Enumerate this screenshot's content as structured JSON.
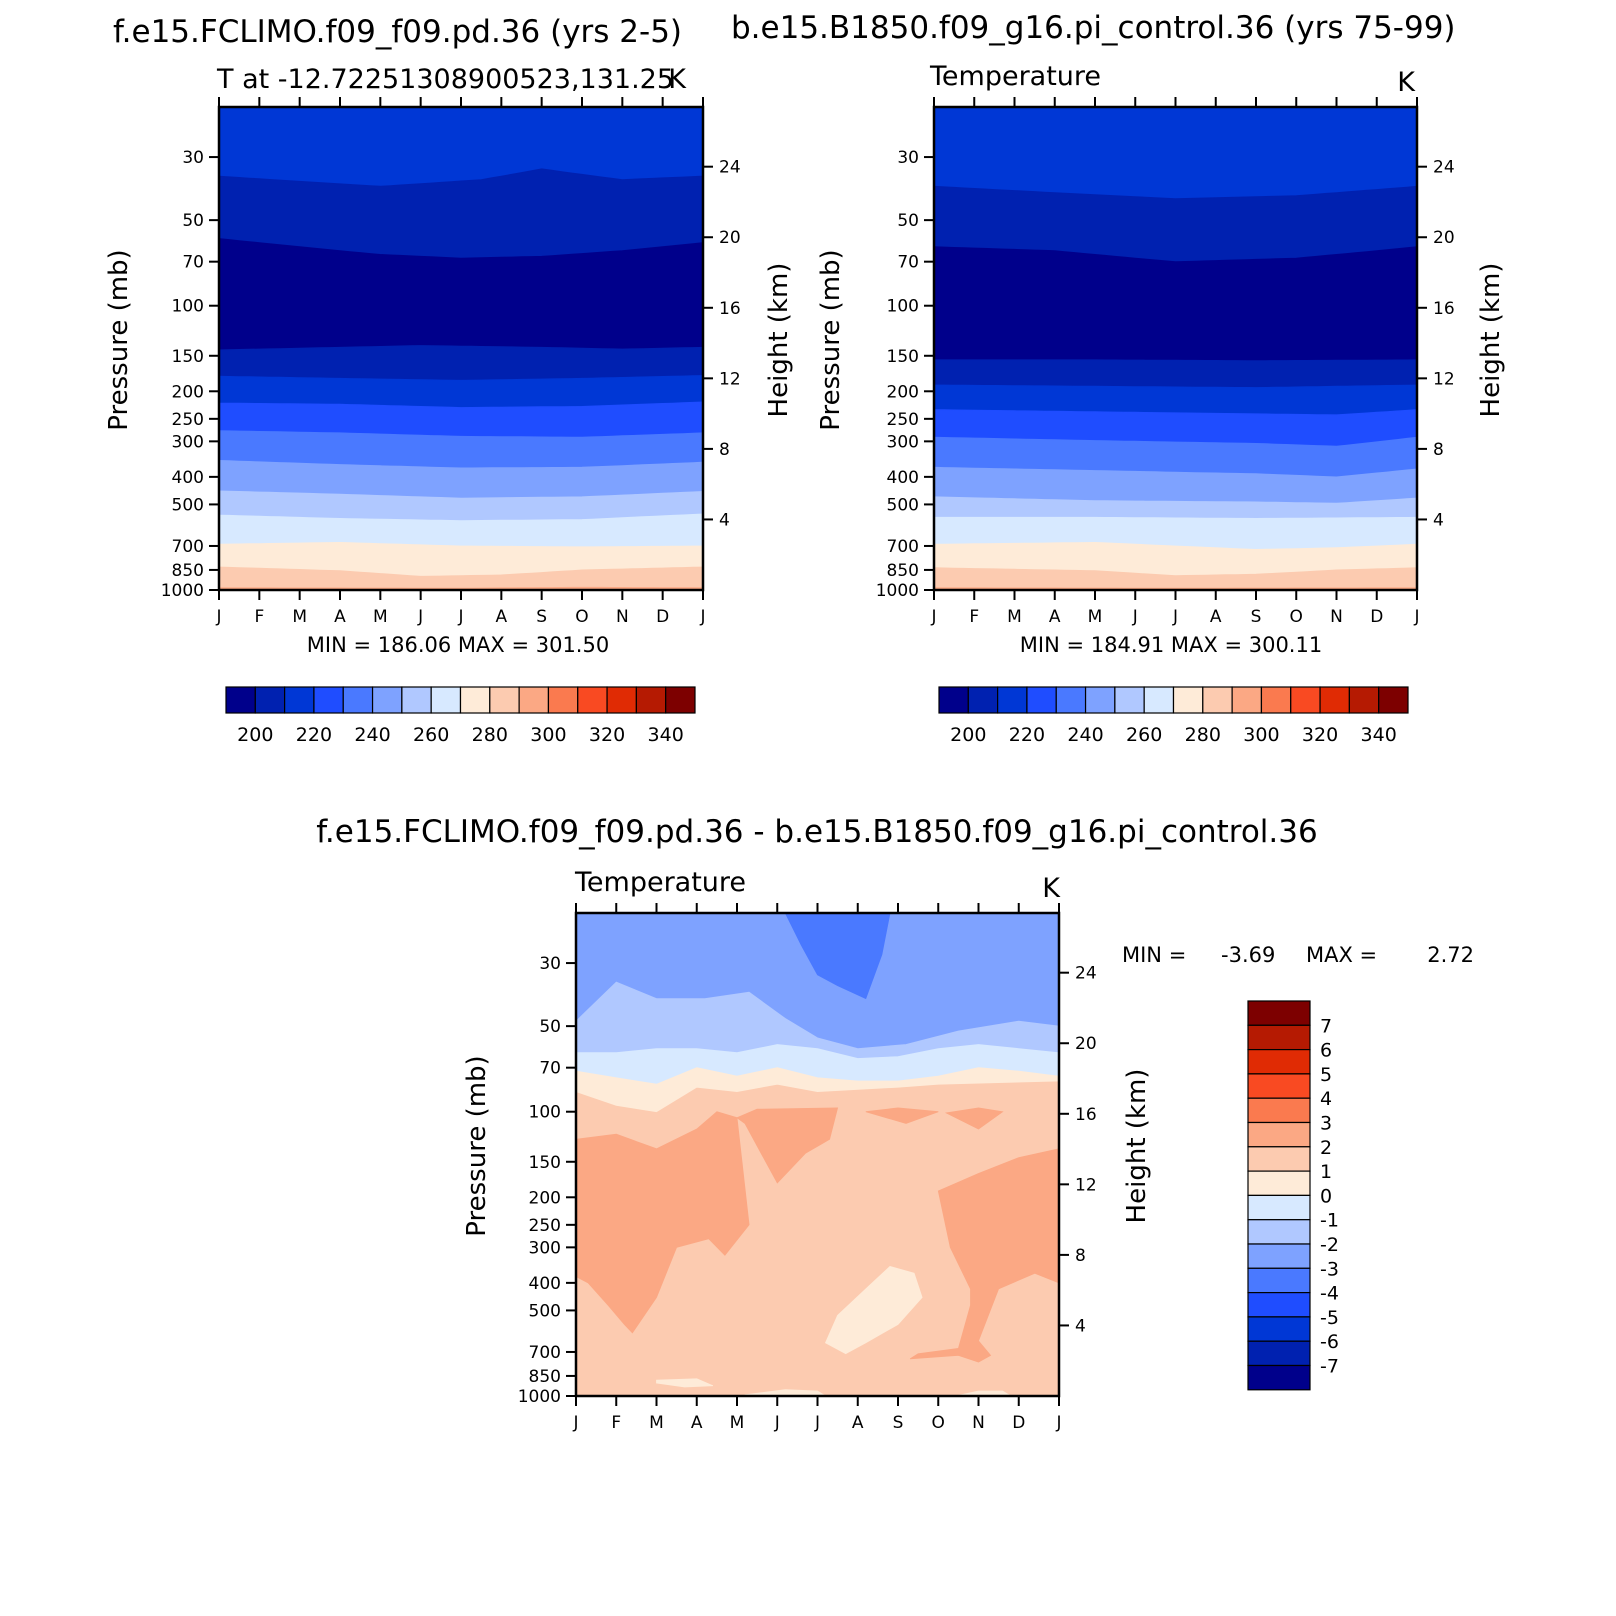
{
  "palette": {
    "abs": [
      "#00008b",
      "#0021b0",
      "#0037d5",
      "#1f4dff",
      "#4a79ff",
      "#7ea2ff",
      "#b0c8ff",
      "#d7e9ff",
      "#feebd8",
      "#fccbb0",
      "#fba884",
      "#fa7a4f",
      "#f94a22",
      "#e02b04",
      "#b51a02",
      "#7d0000"
    ],
    "diff": [
      "#00008b",
      "#0021b0",
      "#0037d5",
      "#1f4dff",
      "#4a79ff",
      "#7ea2ff",
      "#b0c8ff",
      "#d7e9ff",
      "#feebd8",
      "#fccbb0",
      "#fba884",
      "#fa7a4f",
      "#f94a22",
      "#e02b04",
      "#b51a02",
      "#7d0000"
    ]
  },
  "chart_data": [
    {
      "type": "heatmap",
      "id": "p1",
      "title": "f.e15.FCLIMO.f09_f09.pd.36 (yrs 2-5)",
      "subtitle_left": "T at -12.72251308900523,131.25",
      "subtitle_right": "K",
      "ylabel": "Pressure (mb)",
      "ylabel_right": "Height (km)",
      "x_ticks": [
        "J",
        "F",
        "M",
        "A",
        "M",
        "J",
        "J",
        "A",
        "S",
        "O",
        "N",
        "D",
        "J"
      ],
      "y_ticks": [
        30,
        50,
        70,
        100,
        150,
        200,
        250,
        300,
        400,
        500,
        700,
        850,
        1000
      ],
      "ylim": [
        20,
        1000
      ],
      "height_ticks": [
        4,
        8,
        12,
        16,
        20,
        24
      ],
      "stats": "MIN = 186.06 MAX = 301.50",
      "min": 186.06,
      "max": 301.5,
      "colorbar_orientation": "horizontal",
      "colorbar_labels": [
        "200",
        "220",
        "240",
        "260",
        "280",
        "300",
        "320",
        "340"
      ],
      "levels": [
        190,
        200,
        210,
        220,
        230,
        240,
        250,
        260,
        270,
        280,
        290,
        300,
        310,
        320,
        330,
        340,
        350
      ],
      "boundaries_hpa": [
        [
          {
            "m": 0,
            "p": 35
          },
          {
            "m": 2,
            "p": 36.5
          },
          {
            "m": 4,
            "p": 38
          },
          {
            "m": 6.5,
            "p": 36
          },
          {
            "m": 8,
            "p": 33
          },
          {
            "m": 10,
            "p": 36
          },
          {
            "m": 12,
            "p": 35
          }
        ],
        [
          {
            "m": 0,
            "p": 58
          },
          {
            "m": 2,
            "p": 62
          },
          {
            "m": 4,
            "p": 66
          },
          {
            "m": 6,
            "p": 68
          },
          {
            "m": 8,
            "p": 67
          },
          {
            "m": 10,
            "p": 64
          },
          {
            "m": 12,
            "p": 60
          }
        ],
        [
          {
            "m": 0,
            "p": 143
          },
          {
            "m": 3,
            "p": 140
          },
          {
            "m": 5,
            "p": 138
          },
          {
            "m": 8,
            "p": 140
          },
          {
            "m": 10,
            "p": 142
          },
          {
            "m": 12,
            "p": 140
          }
        ],
        [
          {
            "m": 0,
            "p": 177
          },
          {
            "m": 3,
            "p": 180
          },
          {
            "m": 6,
            "p": 183
          },
          {
            "m": 9,
            "p": 180
          },
          {
            "m": 12,
            "p": 176
          }
        ],
        [
          {
            "m": 0,
            "p": 220
          },
          {
            "m": 3,
            "p": 222
          },
          {
            "m": 6,
            "p": 228
          },
          {
            "m": 9,
            "p": 226
          },
          {
            "m": 12,
            "p": 218
          }
        ],
        [
          {
            "m": 0,
            "p": 275
          },
          {
            "m": 3,
            "p": 280
          },
          {
            "m": 6,
            "p": 288
          },
          {
            "m": 9,
            "p": 290
          },
          {
            "m": 12,
            "p": 280
          }
        ],
        [
          {
            "m": 0,
            "p": 350
          },
          {
            "m": 3,
            "p": 362
          },
          {
            "m": 6,
            "p": 372
          },
          {
            "m": 9,
            "p": 370
          },
          {
            "m": 12,
            "p": 355
          }
        ],
        [
          {
            "m": 0,
            "p": 448
          },
          {
            "m": 3,
            "p": 460
          },
          {
            "m": 6,
            "p": 475
          },
          {
            "m": 9,
            "p": 470
          },
          {
            "m": 12,
            "p": 450
          }
        ],
        [
          {
            "m": 0,
            "p": 545
          },
          {
            "m": 3,
            "p": 560
          },
          {
            "m": 6,
            "p": 570
          },
          {
            "m": 9,
            "p": 565
          },
          {
            "m": 12,
            "p": 540
          }
        ],
        [
          {
            "m": 0,
            "p": 690
          },
          {
            "m": 3,
            "p": 680
          },
          {
            "m": 6,
            "p": 700
          },
          {
            "m": 9,
            "p": 705
          },
          {
            "m": 12,
            "p": 700
          }
        ],
        [
          {
            "m": 0,
            "p": 830
          },
          {
            "m": 3,
            "p": 855
          },
          {
            "m": 5,
            "p": 895
          },
          {
            "m": 7,
            "p": 885
          },
          {
            "m": 9,
            "p": 850
          },
          {
            "m": 12,
            "p": 830
          }
        ],
        [
          {
            "m": 0,
            "p": 982
          },
          {
            "m": 6,
            "p": 985
          },
          {
            "m": 9,
            "p": 978
          },
          {
            "m": 12,
            "p": 982
          }
        ]
      ],
      "band_colors": [
        2,
        1,
        0,
        1,
        2,
        3,
        4,
        5,
        6,
        7,
        8,
        9,
        10
      ]
    },
    {
      "type": "heatmap",
      "id": "p2",
      "title": "b.e15.B1850.f09_g16.pi_control.36 (yrs 75-99)",
      "subtitle_left": "Temperature",
      "subtitle_right": "K",
      "ylabel": "Pressure (mb)",
      "ylabel_right": "Height (km)",
      "x_ticks": [
        "J",
        "F",
        "M",
        "A",
        "M",
        "J",
        "J",
        "A",
        "S",
        "O",
        "N",
        "D",
        "J"
      ],
      "y_ticks": [
        30,
        50,
        70,
        100,
        150,
        200,
        250,
        300,
        400,
        500,
        700,
        850,
        1000
      ],
      "ylim": [
        20,
        1000
      ],
      "height_ticks": [
        4,
        8,
        12,
        16,
        20,
        24
      ],
      "stats": "MIN = 184.91 MAX = 300.11",
      "min": 184.91,
      "max": 300.11,
      "colorbar_orientation": "horizontal",
      "colorbar_labels": [
        "200",
        "220",
        "240",
        "260",
        "280",
        "300",
        "320",
        "340"
      ],
      "levels": [
        190,
        200,
        210,
        220,
        230,
        240,
        250,
        260,
        270,
        280,
        290,
        300,
        310,
        320,
        330,
        340,
        350
      ],
      "boundaries_hpa": [
        [
          {
            "m": 0,
            "p": 38
          },
          {
            "m": 3,
            "p": 40
          },
          {
            "m": 6,
            "p": 42
          },
          {
            "m": 9,
            "p": 41
          },
          {
            "m": 12,
            "p": 38
          }
        ],
        [
          {
            "m": 0,
            "p": 62
          },
          {
            "m": 3,
            "p": 64
          },
          {
            "m": 6,
            "p": 70
          },
          {
            "m": 9,
            "p": 68
          },
          {
            "m": 12,
            "p": 62
          }
        ],
        [
          {
            "m": 0,
            "p": 155
          },
          {
            "m": 4,
            "p": 155
          },
          {
            "m": 8,
            "p": 156
          },
          {
            "m": 12,
            "p": 155
          }
        ],
        [
          {
            "m": 0,
            "p": 190
          },
          {
            "m": 4,
            "p": 192
          },
          {
            "m": 8,
            "p": 194
          },
          {
            "m": 12,
            "p": 190
          }
        ],
        [
          {
            "m": 0,
            "p": 232
          },
          {
            "m": 4,
            "p": 236
          },
          {
            "m": 8,
            "p": 240
          },
          {
            "m": 10,
            "p": 242
          },
          {
            "m": 12,
            "p": 232
          }
        ],
        [
          {
            "m": 0,
            "p": 290
          },
          {
            "m": 4,
            "p": 298
          },
          {
            "m": 8,
            "p": 305
          },
          {
            "m": 10,
            "p": 312
          },
          {
            "m": 12,
            "p": 290
          }
        ],
        [
          {
            "m": 0,
            "p": 370
          },
          {
            "m": 4,
            "p": 380
          },
          {
            "m": 8,
            "p": 390
          },
          {
            "m": 10,
            "p": 400
          },
          {
            "m": 12,
            "p": 375
          }
        ],
        [
          {
            "m": 0,
            "p": 470
          },
          {
            "m": 4,
            "p": 485
          },
          {
            "m": 8,
            "p": 490
          },
          {
            "m": 10,
            "p": 495
          },
          {
            "m": 12,
            "p": 475
          }
        ],
        [
          {
            "m": 0,
            "p": 555
          },
          {
            "m": 4,
            "p": 555
          },
          {
            "m": 8,
            "p": 560
          },
          {
            "m": 12,
            "p": 555
          }
        ],
        [
          {
            "m": 0,
            "p": 690
          },
          {
            "m": 4,
            "p": 680
          },
          {
            "m": 8,
            "p": 720
          },
          {
            "m": 10,
            "p": 710
          },
          {
            "m": 12,
            "p": 690
          }
        ],
        [
          {
            "m": 0,
            "p": 835
          },
          {
            "m": 4,
            "p": 855
          },
          {
            "m": 6,
            "p": 890
          },
          {
            "m": 8,
            "p": 880
          },
          {
            "m": 10,
            "p": 850
          },
          {
            "m": 12,
            "p": 835
          }
        ],
        [
          {
            "m": 0,
            "p": 982
          },
          {
            "m": 6,
            "p": 985
          },
          {
            "m": 12,
            "p": 982
          }
        ]
      ],
      "band_colors": [
        2,
        1,
        0,
        1,
        2,
        3,
        4,
        5,
        6,
        7,
        8,
        9,
        10
      ]
    },
    {
      "type": "heatmap",
      "id": "p3",
      "title": "f.e15.FCLIMO.f09_f09.pd.36 - b.e15.B1850.f09_g16.pi_control.36",
      "subtitle_left": "Temperature",
      "subtitle_right": "K",
      "ylabel": "Pressure (mb)",
      "ylabel_right": "Height (km)",
      "x_ticks": [
        "J",
        "F",
        "M",
        "A",
        "M",
        "J",
        "J",
        "A",
        "S",
        "O",
        "N",
        "D",
        "J"
      ],
      "y_ticks": [
        30,
        50,
        70,
        100,
        150,
        200,
        250,
        300,
        400,
        500,
        700,
        850,
        1000
      ],
      "ylim": [
        20,
        1000
      ],
      "height_ticks": [
        4,
        8,
        12,
        16,
        20,
        24
      ],
      "stats": "MIN = -3.69 MAX = 2.72",
      "stat_labels": {
        "min_label": "MIN =",
        "min_value": "-3.69",
        "max_label": "MAX =",
        "max_value": "2.72"
      },
      "min": -3.69,
      "max": 2.72,
      "colorbar_orientation": "vertical",
      "colorbar_labels": [
        "7",
        "6",
        "5",
        "4",
        "3",
        "2",
        "1",
        "0",
        "-1",
        "-2",
        "-3",
        "-4",
        "-5",
        "-6",
        "-7"
      ],
      "levels": [
        -7,
        -6,
        -5,
        -4,
        -3,
        -2,
        -1,
        0,
        1,
        2,
        3,
        4,
        5,
        6,
        7
      ],
      "regions": {
        "background_level": "0..1 (light peach)",
        "strong_cool": {
          "level": "-4..-3",
          "months": [
            5.2,
            7.8
          ],
          "p_range": [
            20,
            45
          ]
        },
        "cool": {
          "level": "-3..-2",
          "p_range": [
            20,
            55
          ]
        },
        "mild_cool": {
          "level": "-2..-1",
          "p_range": [
            40,
            62
          ]
        },
        "near_zero_cool": {
          "level": "-1..0",
          "p_range": [
            60,
            78
          ]
        },
        "warm_band": {
          "level": "0..1",
          "p_range": [
            72,
            100
          ]
        },
        "warm_left": {
          "level": "1..2",
          "months": [
            0,
            3.4
          ],
          "p_range": [
            120,
            520
          ]
        },
        "warm_right": {
          "level": "1..2",
          "months": [
            9,
            12
          ],
          "p_range": [
            120,
            600
          ]
        },
        "warm_mid": {
          "level": "1..2",
          "months": [
            3.5,
            6.5
          ],
          "p_range": [
            95,
            180
          ]
        }
      }
    }
  ]
}
